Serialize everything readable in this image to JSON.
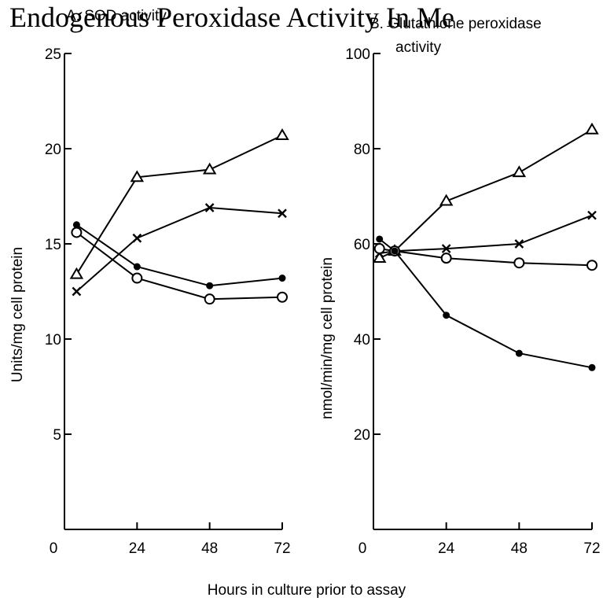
{
  "page_title": "Endogenous Peroxidase Activity In Me",
  "x_axis_label": "Hours in culture prior to assay",
  "chart_data": [
    {
      "type": "line",
      "title": "A. SOD activity",
      "xlabel": "Hours in culture prior to assay",
      "ylabel": "Units/mg cell protein",
      "x_ticks": [
        0,
        24,
        48,
        72
      ],
      "y_ticks": [
        5,
        10,
        15,
        20,
        25
      ],
      "xlim": [
        0,
        72
      ],
      "ylim": [
        0,
        25
      ],
      "series": [
        {
          "marker": "triangle",
          "x": [
            4,
            24,
            48,
            72
          ],
          "y": [
            13.4,
            18.5,
            18.9,
            20.7
          ]
        },
        {
          "marker": "cross",
          "x": [
            4,
            24,
            48,
            72
          ],
          "y": [
            12.5,
            15.3,
            16.9,
            16.6
          ]
        },
        {
          "marker": "filled-circle",
          "x": [
            4,
            24,
            48,
            72
          ],
          "y": [
            16.0,
            13.8,
            12.8,
            13.2
          ]
        },
        {
          "marker": "open-circle",
          "x": [
            4,
            24,
            48,
            72
          ],
          "y": [
            15.6,
            13.2,
            12.1,
            12.2
          ]
        }
      ]
    },
    {
      "type": "line",
      "title": "B. Glutathione peroxidase activity",
      "title_lines": [
        "B. Glutathione peroxidase",
        "activity"
      ],
      "xlabel": "Hours in culture prior to assay",
      "ylabel": "nmol/min/mg cell protein",
      "x_ticks": [
        0,
        24,
        48,
        72
      ],
      "y_ticks": [
        20,
        40,
        60,
        80,
        100
      ],
      "xlim": [
        0,
        72
      ],
      "ylim": [
        0,
        100
      ],
      "series": [
        {
          "marker": "triangle",
          "x": [
            2,
            7,
            24,
            48,
            72
          ],
          "y": [
            57,
            58.5,
            69,
            75,
            84
          ]
        },
        {
          "marker": "cross",
          "x": [
            2,
            7,
            24,
            48,
            72
          ],
          "y": [
            58,
            58.5,
            59,
            60,
            66
          ]
        },
        {
          "marker": "open-circle",
          "x": [
            2,
            7,
            24,
            48,
            72
          ],
          "y": [
            59,
            58.5,
            57,
            56,
            55.5
          ]
        },
        {
          "marker": "filled-circle",
          "x": [
            2,
            7,
            24,
            48,
            72
          ],
          "y": [
            61,
            58.5,
            45,
            37,
            34
          ]
        }
      ]
    }
  ]
}
